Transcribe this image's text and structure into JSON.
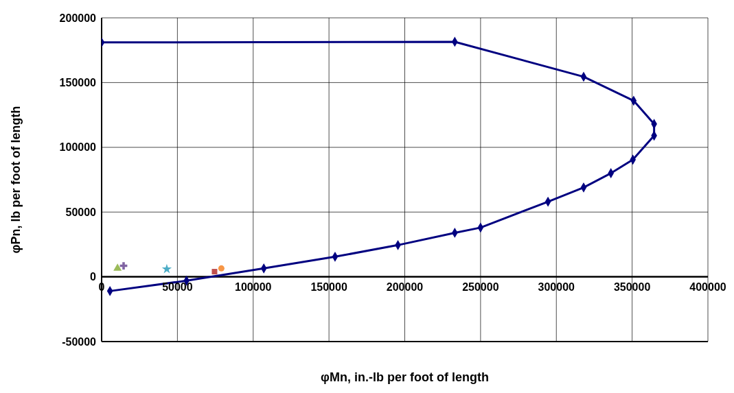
{
  "chart_data": {
    "type": "line",
    "xlabel": "φMn, in.-lb per foot of length",
    "ylabel": "φPn, lb per foot of length",
    "xlim": [
      0,
      400000
    ],
    "xticks": [
      0,
      50000,
      100000,
      150000,
      200000,
      250000,
      300000,
      350000,
      400000
    ],
    "ylim": [
      -50000,
      200000
    ],
    "yticks": [
      -50000,
      0,
      50000,
      100000,
      150000,
      200000
    ],
    "grid": true,
    "legend": false,
    "series": [
      {
        "color": "#000080",
        "marker": "diamond",
        "x": [
          0,
          233000,
          318000,
          351000,
          364500,
          364500,
          350500,
          336000,
          318000,
          294500,
          250000,
          233000,
          195500,
          154000,
          107000,
          56000,
          5500
        ],
        "values": [
          181000,
          181500,
          154500,
          136000,
          118000,
          109000,
          90500,
          80000,
          69000,
          58000,
          38000,
          34000,
          24500,
          15500,
          6500,
          -3000,
          -11000
        ]
      },
      {
        "type": "scatter",
        "color": "#9bbb59",
        "marker": "triangle",
        "x": [
          10500
        ],
        "values": [
          6500
        ]
      },
      {
        "type": "scatter",
        "color": "#8064a2",
        "marker": "cross",
        "x": [
          14500
        ],
        "values": [
          8500
        ]
      },
      {
        "type": "scatter",
        "color": "#4bacc6",
        "marker": "star",
        "x": [
          43000
        ],
        "values": [
          6000
        ]
      },
      {
        "type": "scatter",
        "color": "#c0504d",
        "marker": "square",
        "x": [
          74500
        ],
        "values": [
          4000
        ]
      },
      {
        "type": "scatter",
        "color": "#f79646",
        "marker": "circle",
        "x": [
          79000
        ],
        "values": [
          6500
        ]
      }
    ]
  }
}
